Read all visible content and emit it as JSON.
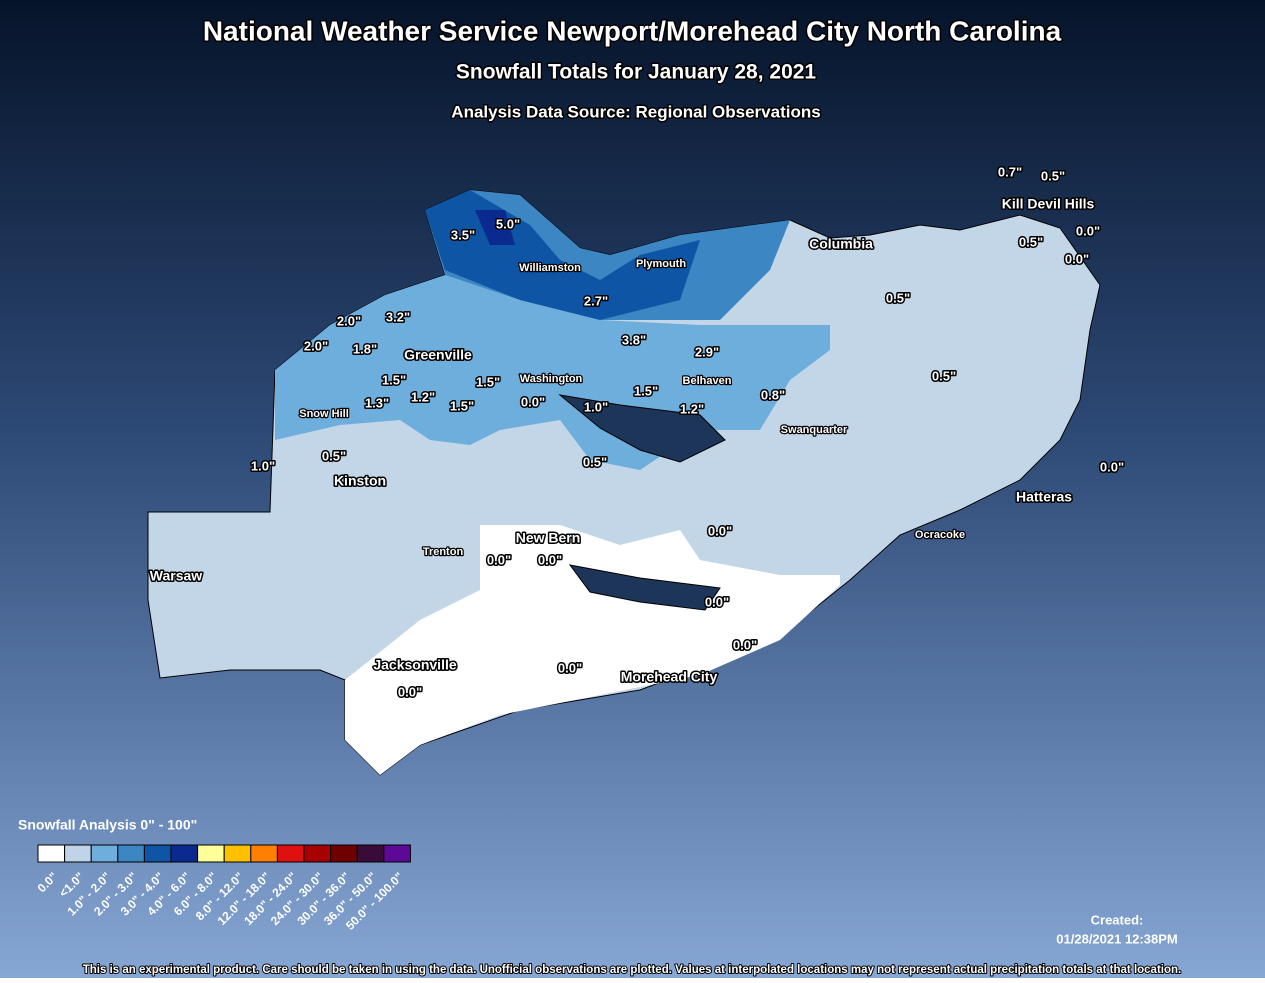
{
  "header": {
    "title": "National Weather Service Newport/Morehead City North Carolina",
    "subtitle": "Snowfall Totals for January 28, 2021",
    "source": "Analysis Data Source: Regional Observations"
  },
  "places": [
    "Kill Devil Hills",
    "Columbia",
    "Williamston",
    "Plymouth",
    "Greenville",
    "Washington",
    "Belhaven",
    "Snow Hill",
    "Swanquarter",
    "Kinston",
    "Hatteras",
    "Ocracoke",
    "New Bern",
    "Trenton",
    "Warsaw",
    "Jacksonville",
    "Morehead City"
  ],
  "observations": [
    "0.7\"",
    "0.5\"",
    "0.0\"",
    "0.5\"",
    "0.0\"",
    "3.5\"",
    "5.0\"",
    "2.7\"",
    "0.5\"",
    "2.0\"",
    "3.2\"",
    "2.0\"",
    "1.8\"",
    "3.8\"",
    "2.9\"",
    "1.5\"",
    "1.5\"",
    "1.2\"",
    "1.3\"",
    "1.5\"",
    "0.0\"",
    "1.0\"",
    "1.5\"",
    "1.2\"",
    "0.8\"",
    "0.5\"",
    "0.5\"",
    "1.0\"",
    "0.5\"",
    "0.0\"",
    "0.0\"",
    "0.0\"",
    "0.0\"",
    "0.0\"",
    "0.0\"",
    "0.0\"",
    "0.0\""
  ],
  "legend": {
    "title": "Snowfall Analysis 0\" - 100\"",
    "items": [
      {
        "label": "0.0\"",
        "color": "#ffffff"
      },
      {
        "label": "<1.0\"",
        "color": "#bfd4e8"
      },
      {
        "label": "1.0\" - 2.0\"",
        "color": "#6eaedc"
      },
      {
        "label": "2.0\" - 3.0\"",
        "color": "#3c86c4"
      },
      {
        "label": "3.0\" - 4.0\"",
        "color": "#0f55a5"
      },
      {
        "label": "4.0\" - 6.0\"",
        "color": "#0a2a90"
      },
      {
        "label": "6.0\" - 8.0\"",
        "color": "#ffff99"
      },
      {
        "label": "8.0\" - 12.0\"",
        "color": "#ffc000"
      },
      {
        "label": "12.0\" - 18.0\"",
        "color": "#ff8000"
      },
      {
        "label": "18.0\" - 24.0\"",
        "color": "#e01010"
      },
      {
        "label": "24.0\" - 30.0\"",
        "color": "#a80000"
      },
      {
        "label": "30.0\" - 36.0\"",
        "color": "#700000"
      },
      {
        "label": "36.0\" - 50.0\"",
        "color": "#3a0a3a"
      },
      {
        "label": "50.0\" - 100.0\"",
        "color": "#5c0a96"
      }
    ]
  },
  "created": {
    "label": "Created:",
    "time": "01/28/2021 12:38PM"
  },
  "disclaimer": "This is an experimental product. Care should be taken in using the data. Unofficial observations are plotted. Values at interpolated locations may not represent actual precipitation totals at that location."
}
